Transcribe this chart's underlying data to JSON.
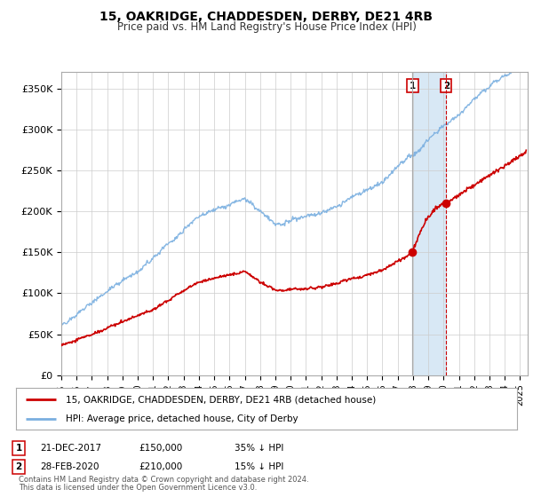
{
  "title": "15, OAKRIDGE, CHADDESDEN, DERBY, DE21 4RB",
  "subtitle": "Price paid vs. HM Land Registry's House Price Index (HPI)",
  "ylabel_ticks": [
    "£0",
    "£50K",
    "£100K",
    "£150K",
    "£200K",
    "£250K",
    "£300K",
    "£350K"
  ],
  "ytick_values": [
    0,
    50000,
    100000,
    150000,
    200000,
    250000,
    300000,
    350000
  ],
  "ylim": [
    0,
    370000
  ],
  "xlim_start": 1995.0,
  "xlim_end": 2025.5,
  "sale1_year": 2017.97,
  "sale1_price": 150000,
  "sale1_label": "1",
  "sale1_date": "21-DEC-2017",
  "sale1_price_str": "£150,000",
  "sale1_pct": "35% ↓ HPI",
  "sale2_year": 2020.17,
  "sale2_price": 210000,
  "sale2_label": "2",
  "sale2_date": "28-FEB-2020",
  "sale2_price_str": "£210,000",
  "sale2_pct": "15% ↓ HPI",
  "legend_line1": "15, OAKRIDGE, CHADDESDEN, DERBY, DE21 4RB (detached house)",
  "legend_line2": "HPI: Average price, detached house, City of Derby",
  "footer1": "Contains HM Land Registry data © Crown copyright and database right 2024.",
  "footer2": "This data is licensed under the Open Government Licence v3.0.",
  "red_color": "#cc0000",
  "blue_color": "#7aafe0",
  "highlight_color": "#d8e8f5",
  "grid_color": "#cccccc",
  "bg_color": "#ffffff"
}
